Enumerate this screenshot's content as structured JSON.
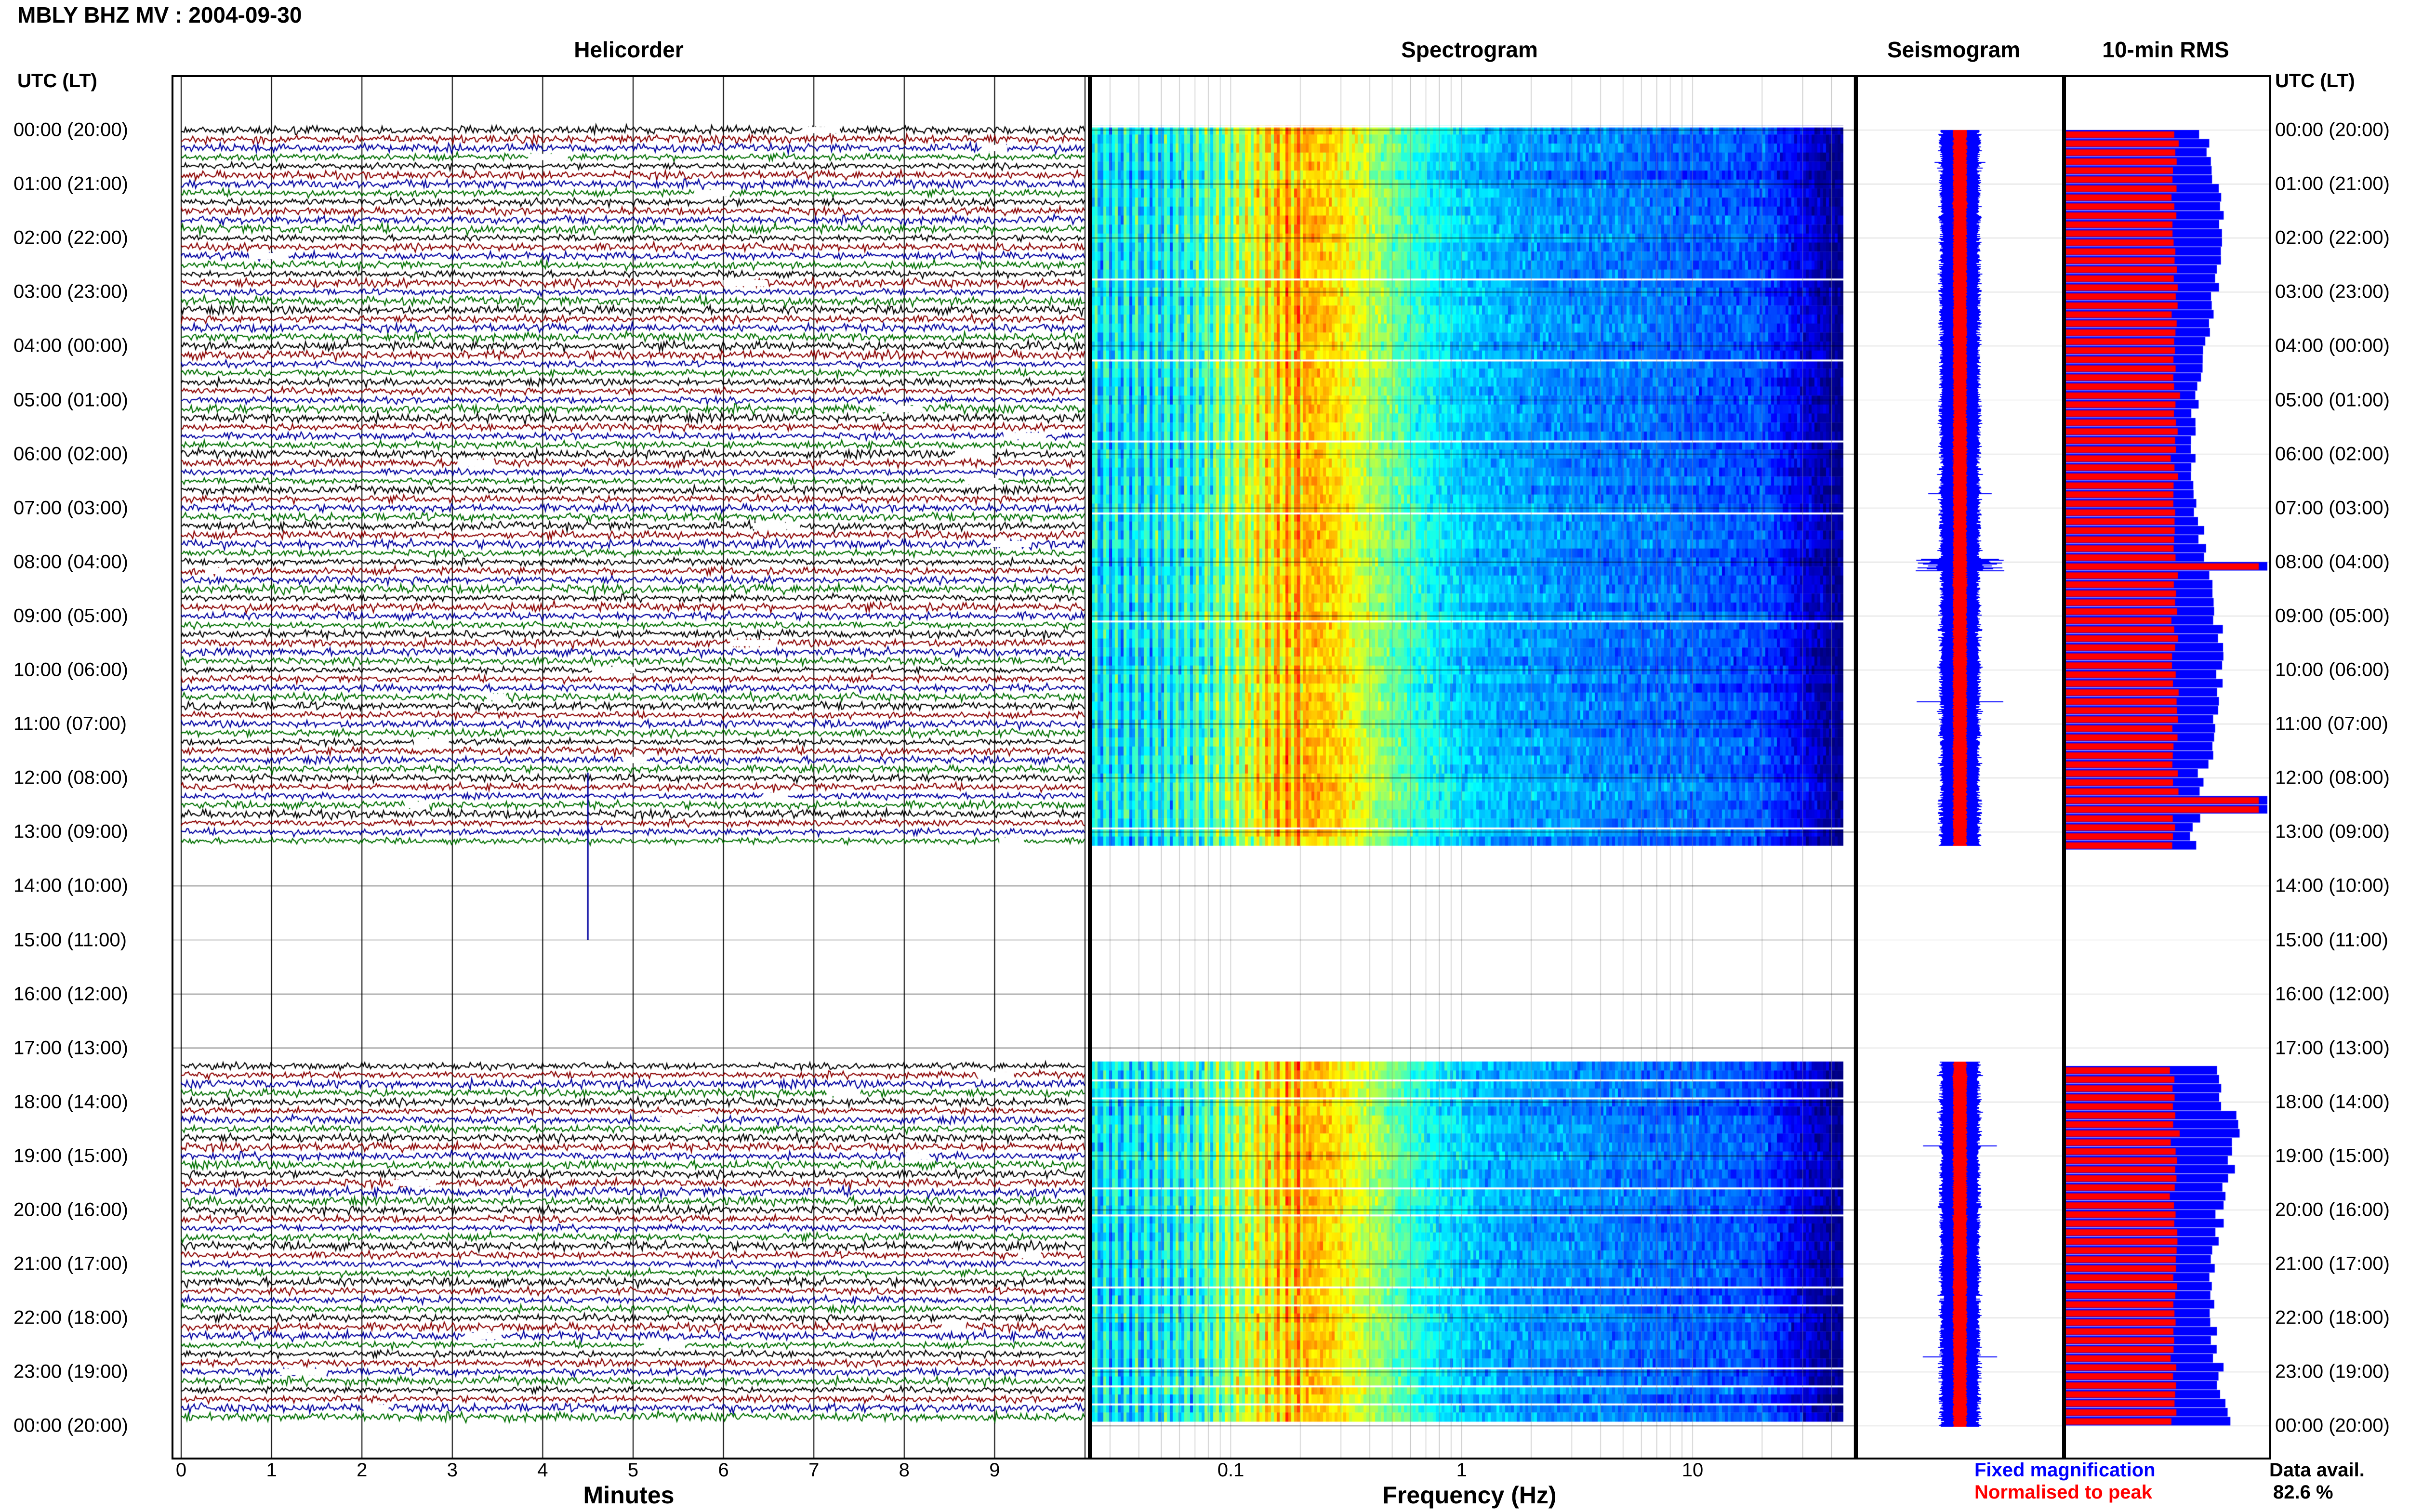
{
  "header": {
    "title": "MBLY BHZ MV : 2004-09-30"
  },
  "panels": {
    "helicorder": "Helicorder",
    "spectrogram": "Spectrogram",
    "seismogram": "Seismogram",
    "rms": "10-min RMS"
  },
  "axis_labels": {
    "minutes": "Minutes",
    "frequency": "Frequency (Hz)",
    "utc_lt": "UTC (LT)"
  },
  "legend": {
    "fixed": "Fixed magnification",
    "normalised": "Normalised to peak",
    "fixed_color": "#0000ff",
    "normalised_color": "#ff0000"
  },
  "availability": {
    "label": "Data avail.",
    "value": "82.6 %"
  },
  "chart_data": {
    "type": "heatmap",
    "time_labels": [
      "00:00 (20:00)",
      "01:00 (21:00)",
      "02:00 (22:00)",
      "03:00 (23:00)",
      "04:00 (00:00)",
      "05:00 (01:00)",
      "06:00 (02:00)",
      "07:00 (03:00)",
      "08:00 (04:00)",
      "09:00 (05:00)",
      "10:00 (06:00)",
      "11:00 (07:00)",
      "12:00 (08:00)",
      "13:00 (09:00)",
      "14:00 (10:00)",
      "15:00 (11:00)",
      "16:00 (12:00)",
      "17:00 (13:00)",
      "18:00 (14:00)",
      "19:00 (15:00)",
      "20:00 (16:00)",
      "21:00 (17:00)",
      "22:00 (18:00)",
      "23:00 (19:00)",
      "00:00 (20:00)"
    ],
    "minute_ticks": [
      "0",
      "1",
      "2",
      "3",
      "4",
      "5",
      "6",
      "7",
      "8",
      "9"
    ],
    "minute_range": [
      0,
      10
    ],
    "frequency_ticks": [
      "0.1",
      "1",
      "10"
    ],
    "frequency_range": [
      0.025,
      50
    ],
    "frequency_scale": "log",
    "data_gap_hours": [
      13.25,
      17.25
    ],
    "trace_colors": [
      "#000000",
      "#8b0000",
      "#0000a0",
      "#007000"
    ],
    "spectral_peak_hz": 0.2,
    "rms_event_hours": [
      8.05,
      12.4
    ]
  }
}
